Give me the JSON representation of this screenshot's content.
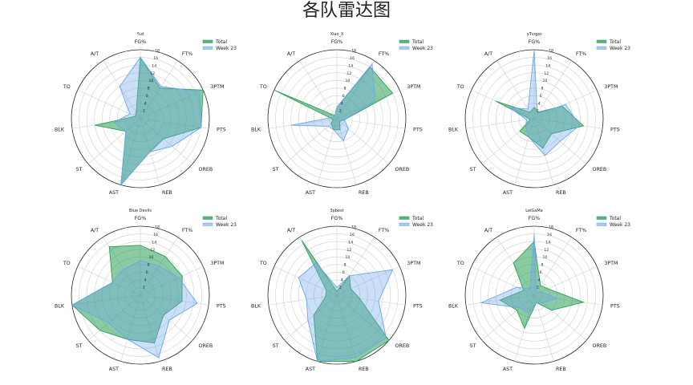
{
  "page_title": "各队雷达图",
  "chart_data": [
    {
      "type": "radar",
      "title": "%d",
      "axes": [
        "FG%",
        "FT%",
        "3PTM",
        "PTS",
        "OREB",
        "REB",
        "AST",
        "ST",
        "BLK",
        "TO",
        "A/T"
      ],
      "rmax": 18,
      "ticks": [
        "2",
        "4",
        "6",
        "8",
        "10",
        "12",
        "14",
        "16",
        "18"
      ],
      "series": [
        {
          "name": "Total",
          "values": [
            16,
            9.5,
            18,
            16,
            8,
            9,
            18,
            5,
            12,
            1.5,
            2
          ]
        },
        {
          "name": "Week 23",
          "values": [
            16,
            10,
            17,
            16,
            11,
            9,
            18,
            5,
            7,
            3,
            10
          ]
        }
      ],
      "legend": "top-right"
    },
    {
      "type": "radar",
      "title": "Xiao_X",
      "axes": [
        "FG%",
        "FT%",
        "3PTM",
        "PTS",
        "OREB",
        "REB",
        "AST",
        "ST",
        "BLK",
        "TO",
        "A/T"
      ],
      "rmax": 18,
      "ticks": [
        "2",
        "4",
        "6",
        "8",
        "10",
        "12",
        "14",
        "16",
        "18"
      ],
      "series": [
        {
          "name": "Total",
          "values": [
            3,
            16,
            16,
            2,
            1,
            3,
            3,
            2,
            1,
            18,
            1
          ]
        },
        {
          "name": "Week 23",
          "values": [
            3,
            17,
            11,
            2,
            4,
            6,
            3,
            3,
            12,
            1,
            1
          ]
        }
      ],
      "legend": "top-right"
    },
    {
      "type": "radar",
      "title": "yTvqpo",
      "axes": [
        "FG%",
        "FT%",
        "3PTM",
        "PTS",
        "OREB",
        "REB",
        "AST",
        "ST",
        "BLK",
        "TO",
        "A/T"
      ],
      "rmax": 18,
      "ticks": [
        "2",
        "4",
        "6",
        "8",
        "10",
        "12",
        "14",
        "16",
        "18"
      ],
      "series": [
        {
          "name": "Total",
          "values": [
            3,
            2,
            8,
            13,
            6,
            8,
            5,
            5,
            1,
            11,
            2
          ]
        },
        {
          "name": "Week 23",
          "values": [
            18,
            1.5,
            9,
            12,
            9,
            10,
            5,
            3,
            2,
            7,
            3
          ]
        }
      ],
      "legend": "top-right"
    },
    {
      "type": "radar",
      "title": "Blue Devils",
      "axes": [
        "FG%",
        "FT%",
        "3PTM",
        "PTS",
        "OREB",
        "REB",
        "AST",
        "ST",
        "BLK",
        "TO",
        "A/T"
      ],
      "rmax": 18,
      "ticks": [
        "2",
        "4",
        "6",
        "8",
        "10",
        "12",
        "14",
        "16",
        "18"
      ],
      "series": [
        {
          "name": "Total",
          "values": [
            13,
            12,
            12,
            11,
            8,
            13,
            12,
            14,
            18,
            8,
            15
          ]
        },
        {
          "name": "Week 23",
          "values": [
            9,
            9,
            11,
            15,
            10,
            17,
            12,
            11,
            18,
            8,
            8
          ]
        }
      ],
      "legend": "top-right"
    },
    {
      "type": "radar",
      "title": "3pbest",
      "axes": [
        "FG%",
        "FT%",
        "3PTM",
        "PTS",
        "OREB",
        "REB",
        "AST",
        "ST",
        "BLK",
        "TO",
        "A/T"
      ],
      "rmax": 18,
      "ticks": [
        "2",
        "4",
        "6",
        "8",
        "10",
        "12",
        "14",
        "16",
        "18"
      ],
      "series": [
        {
          "name": "Total",
          "values": [
            1,
            6,
            4,
            6,
            18,
            18,
            18,
            8,
            3,
            3,
            17
          ]
        },
        {
          "name": "Week 23",
          "values": [
            2,
            6,
            16,
            11,
            17,
            17,
            18,
            10,
            8,
            11,
            10
          ]
        }
      ],
      "legend": "top-right"
    },
    {
      "type": "radar",
      "title": "LeiGaMa",
      "axes": [
        "FG%",
        "FT%",
        "3PTM",
        "PTS",
        "OREB",
        "REB",
        "AST",
        "ST",
        "BLK",
        "TO",
        "A/T"
      ],
      "rmax": 18,
      "ticks": [
        "2",
        "4",
        "6",
        "8",
        "10",
        "12",
        "14",
        "16",
        "18"
      ],
      "series": [
        {
          "name": "Total",
          "values": [
            14,
            3,
            4,
            13,
            6,
            2,
            9,
            6,
            9,
            3,
            10
          ]
        },
        {
          "name": "Week 23",
          "values": [
            16,
            1,
            2,
            6,
            3,
            2,
            5,
            5,
            14,
            5,
            2
          ]
        }
      ],
      "legend": "top-right"
    }
  ],
  "colors": {
    "total": "#2ca05a",
    "week": "#6aa7ea"
  }
}
